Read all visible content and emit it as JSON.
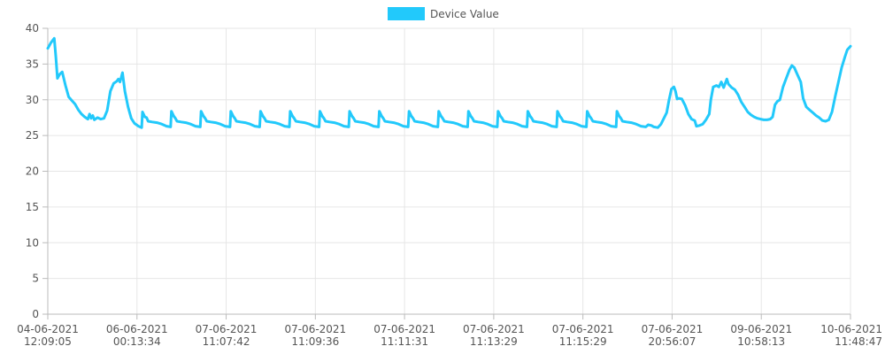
{
  "chart_data": {
    "type": "line",
    "title": "",
    "xlabel": "",
    "ylabel": "",
    "ylim": [
      0,
      40
    ],
    "y_ticks": [
      0,
      5,
      10,
      15,
      20,
      25,
      30,
      35,
      40
    ],
    "grid": true,
    "legend_position": "top",
    "x_tick_labels": [
      [
        "04-06-2021",
        "12:09:05"
      ],
      [
        "06-06-2021",
        "00:13:34"
      ],
      [
        "07-06-2021",
        "11:07:42"
      ],
      [
        "07-06-2021",
        "11:09:36"
      ],
      [
        "07-06-2021",
        "11:11:31"
      ],
      [
        "07-06-2021",
        "11:13:29"
      ],
      [
        "07-06-2021",
        "11:15:29"
      ],
      [
        "07-06-2021",
        "20:56:07"
      ],
      [
        "09-06-2021",
        "10:58:13"
      ],
      [
        "10-06-2021",
        "11:48:47"
      ]
    ],
    "series": [
      {
        "name": "Device Value",
        "color": "#22c9fb",
        "legend_fill": "#22c9fb",
        "points": [
          [
            0.0,
            37.2
          ],
          [
            0.004,
            38.0
          ],
          [
            0.008,
            38.6
          ],
          [
            0.01,
            36.0
          ],
          [
            0.012,
            33.0
          ],
          [
            0.015,
            33.6
          ],
          [
            0.018,
            33.9
          ],
          [
            0.022,
            32.0
          ],
          [
            0.026,
            30.4
          ],
          [
            0.03,
            29.9
          ],
          [
            0.034,
            29.4
          ],
          [
            0.038,
            28.6
          ],
          [
            0.042,
            28.0
          ],
          [
            0.046,
            27.6
          ],
          [
            0.05,
            27.3
          ],
          [
            0.052,
            28.0
          ],
          [
            0.054,
            27.4
          ],
          [
            0.056,
            27.8
          ],
          [
            0.058,
            27.2
          ],
          [
            0.062,
            27.5
          ],
          [
            0.066,
            27.3
          ],
          [
            0.07,
            27.4
          ],
          [
            0.074,
            28.5
          ],
          [
            0.078,
            31.2
          ],
          [
            0.082,
            32.3
          ],
          [
            0.086,
            32.6
          ],
          [
            0.088,
            32.9
          ],
          [
            0.09,
            32.5
          ],
          [
            0.093,
            33.8
          ],
          [
            0.096,
            31.2
          ],
          [
            0.1,
            29.0
          ],
          [
            0.104,
            27.4
          ],
          [
            0.108,
            26.7
          ],
          [
            0.113,
            26.3
          ],
          [
            0.117,
            26.1
          ],
          [
            0.118,
            28.3
          ],
          [
            0.121,
            27.6
          ],
          [
            0.123,
            27.5
          ],
          [
            0.125,
            27.0
          ],
          [
            0.13,
            26.9
          ],
          [
            0.136,
            26.8
          ],
          [
            0.142,
            26.6
          ],
          [
            0.148,
            26.3
          ],
          [
            0.153,
            26.2
          ],
          [
            0.154,
            28.4
          ],
          [
            0.157,
            27.7
          ],
          [
            0.159,
            27.4
          ],
          [
            0.161,
            27.0
          ],
          [
            0.166,
            26.9
          ],
          [
            0.172,
            26.8
          ],
          [
            0.178,
            26.6
          ],
          [
            0.184,
            26.3
          ],
          [
            0.19,
            26.2
          ],
          [
            0.191,
            28.4
          ],
          [
            0.194,
            27.7
          ],
          [
            0.196,
            27.4
          ],
          [
            0.198,
            27.0
          ],
          [
            0.203,
            26.9
          ],
          [
            0.209,
            26.8
          ],
          [
            0.215,
            26.6
          ],
          [
            0.221,
            26.3
          ],
          [
            0.227,
            26.2
          ],
          [
            0.228,
            28.4
          ],
          [
            0.231,
            27.7
          ],
          [
            0.233,
            27.4
          ],
          [
            0.235,
            27.0
          ],
          [
            0.24,
            26.9
          ],
          [
            0.246,
            26.8
          ],
          [
            0.252,
            26.6
          ],
          [
            0.258,
            26.3
          ],
          [
            0.264,
            26.2
          ],
          [
            0.265,
            28.4
          ],
          [
            0.268,
            27.7
          ],
          [
            0.27,
            27.4
          ],
          [
            0.272,
            27.0
          ],
          [
            0.277,
            26.9
          ],
          [
            0.283,
            26.8
          ],
          [
            0.289,
            26.6
          ],
          [
            0.295,
            26.3
          ],
          [
            0.301,
            26.2
          ],
          [
            0.302,
            28.4
          ],
          [
            0.305,
            27.7
          ],
          [
            0.307,
            27.4
          ],
          [
            0.309,
            27.0
          ],
          [
            0.314,
            26.9
          ],
          [
            0.32,
            26.8
          ],
          [
            0.326,
            26.6
          ],
          [
            0.332,
            26.3
          ],
          [
            0.338,
            26.2
          ],
          [
            0.339,
            28.4
          ],
          [
            0.342,
            27.7
          ],
          [
            0.344,
            27.4
          ],
          [
            0.346,
            27.0
          ],
          [
            0.351,
            26.9
          ],
          [
            0.357,
            26.8
          ],
          [
            0.363,
            26.6
          ],
          [
            0.369,
            26.3
          ],
          [
            0.375,
            26.2
          ],
          [
            0.376,
            28.4
          ],
          [
            0.379,
            27.7
          ],
          [
            0.381,
            27.4
          ],
          [
            0.383,
            27.0
          ],
          [
            0.388,
            26.9
          ],
          [
            0.394,
            26.8
          ],
          [
            0.4,
            26.6
          ],
          [
            0.406,
            26.3
          ],
          [
            0.412,
            26.2
          ],
          [
            0.413,
            28.4
          ],
          [
            0.416,
            27.7
          ],
          [
            0.418,
            27.4
          ],
          [
            0.42,
            27.0
          ],
          [
            0.425,
            26.9
          ],
          [
            0.431,
            26.8
          ],
          [
            0.437,
            26.6
          ],
          [
            0.443,
            26.3
          ],
          [
            0.449,
            26.2
          ],
          [
            0.45,
            28.4
          ],
          [
            0.453,
            27.7
          ],
          [
            0.455,
            27.4
          ],
          [
            0.457,
            27.0
          ],
          [
            0.462,
            26.9
          ],
          [
            0.468,
            26.8
          ],
          [
            0.474,
            26.6
          ],
          [
            0.48,
            26.3
          ],
          [
            0.486,
            26.2
          ],
          [
            0.487,
            28.4
          ],
          [
            0.49,
            27.7
          ],
          [
            0.492,
            27.4
          ],
          [
            0.494,
            27.0
          ],
          [
            0.499,
            26.9
          ],
          [
            0.505,
            26.8
          ],
          [
            0.511,
            26.6
          ],
          [
            0.517,
            26.3
          ],
          [
            0.523,
            26.2
          ],
          [
            0.524,
            28.4
          ],
          [
            0.527,
            27.7
          ],
          [
            0.529,
            27.4
          ],
          [
            0.531,
            27.0
          ],
          [
            0.536,
            26.9
          ],
          [
            0.542,
            26.8
          ],
          [
            0.548,
            26.6
          ],
          [
            0.554,
            26.3
          ],
          [
            0.56,
            26.2
          ],
          [
            0.561,
            28.4
          ],
          [
            0.564,
            27.7
          ],
          [
            0.566,
            27.4
          ],
          [
            0.568,
            27.0
          ],
          [
            0.573,
            26.9
          ],
          [
            0.579,
            26.8
          ],
          [
            0.585,
            26.6
          ],
          [
            0.591,
            26.3
          ],
          [
            0.597,
            26.2
          ],
          [
            0.598,
            28.4
          ],
          [
            0.601,
            27.7
          ],
          [
            0.603,
            27.4
          ],
          [
            0.605,
            27.0
          ],
          [
            0.61,
            26.9
          ],
          [
            0.616,
            26.8
          ],
          [
            0.622,
            26.6
          ],
          [
            0.628,
            26.3
          ],
          [
            0.634,
            26.2
          ],
          [
            0.635,
            28.4
          ],
          [
            0.638,
            27.7
          ],
          [
            0.64,
            27.4
          ],
          [
            0.642,
            27.0
          ],
          [
            0.647,
            26.9
          ],
          [
            0.653,
            26.8
          ],
          [
            0.659,
            26.6
          ],
          [
            0.665,
            26.3
          ],
          [
            0.671,
            26.2
          ],
          [
            0.672,
            28.4
          ],
          [
            0.675,
            27.7
          ],
          [
            0.677,
            27.4
          ],
          [
            0.679,
            27.0
          ],
          [
            0.684,
            26.9
          ],
          [
            0.69,
            26.8
          ],
          [
            0.696,
            26.6
          ],
          [
            0.702,
            26.3
          ],
          [
            0.708,
            26.2
          ],
          [
            0.709,
            28.4
          ],
          [
            0.712,
            27.7
          ],
          [
            0.714,
            27.4
          ],
          [
            0.716,
            27.0
          ],
          [
            0.721,
            26.9
          ],
          [
            0.727,
            26.8
          ],
          [
            0.733,
            26.6
          ],
          [
            0.739,
            26.3
          ],
          [
            0.745,
            26.2
          ],
          [
            0.748,
            26.5
          ],
          [
            0.752,
            26.4
          ],
          [
            0.755,
            26.2
          ],
          [
            0.76,
            26.1
          ],
          [
            0.764,
            26.6
          ],
          [
            0.767,
            27.3
          ],
          [
            0.771,
            28.2
          ],
          [
            0.774,
            30.0
          ],
          [
            0.777,
            31.5
          ],
          [
            0.78,
            31.8
          ],
          [
            0.782,
            31.2
          ],
          [
            0.784,
            30.1
          ],
          [
            0.786,
            30.2
          ],
          [
            0.79,
            30.1
          ],
          [
            0.794,
            29.2
          ],
          [
            0.798,
            28.0
          ],
          [
            0.802,
            27.3
          ],
          [
            0.806,
            27.1
          ],
          [
            0.808,
            26.3
          ],
          [
            0.812,
            26.4
          ],
          [
            0.816,
            26.6
          ],
          [
            0.82,
            27.2
          ],
          [
            0.824,
            28.0
          ],
          [
            0.826,
            30.0
          ],
          [
            0.829,
            31.8
          ],
          [
            0.833,
            32.0
          ],
          [
            0.836,
            31.8
          ],
          [
            0.839,
            32.5
          ],
          [
            0.842,
            31.7
          ],
          [
            0.846,
            32.9
          ],
          [
            0.848,
            32.2
          ],
          [
            0.852,
            31.7
          ],
          [
            0.856,
            31.4
          ],
          [
            0.86,
            30.7
          ],
          [
            0.864,
            29.7
          ],
          [
            0.868,
            29.0
          ],
          [
            0.872,
            28.3
          ],
          [
            0.876,
            27.9
          ],
          [
            0.88,
            27.6
          ],
          [
            0.884,
            27.4
          ],
          [
            0.888,
            27.3
          ],
          [
            0.892,
            27.2
          ],
          [
            0.896,
            27.2
          ],
          [
            0.9,
            27.3
          ],
          [
            0.903,
            27.6
          ],
          [
            0.906,
            29.3
          ],
          [
            0.909,
            29.8
          ],
          [
            0.912,
            30.0
          ],
          [
            0.916,
            31.8
          ],
          [
            0.92,
            33.0
          ],
          [
            0.924,
            34.2
          ],
          [
            0.927,
            34.8
          ],
          [
            0.93,
            34.5
          ],
          [
            0.934,
            33.5
          ],
          [
            0.938,
            32.5
          ],
          [
            0.941,
            30.2
          ],
          [
            0.945,
            29.0
          ],
          [
            0.949,
            28.6
          ],
          [
            0.953,
            28.2
          ],
          [
            0.957,
            27.8
          ],
          [
            0.961,
            27.5
          ],
          [
            0.965,
            27.1
          ],
          [
            0.969,
            27.0
          ],
          [
            0.973,
            27.2
          ],
          [
            0.977,
            28.3
          ],
          [
            0.981,
            30.5
          ],
          [
            0.985,
            32.5
          ],
          [
            0.989,
            34.5
          ],
          [
            0.993,
            36.0
          ],
          [
            0.996,
            37.0
          ],
          [
            1.0,
            37.5
          ]
        ]
      }
    ]
  }
}
